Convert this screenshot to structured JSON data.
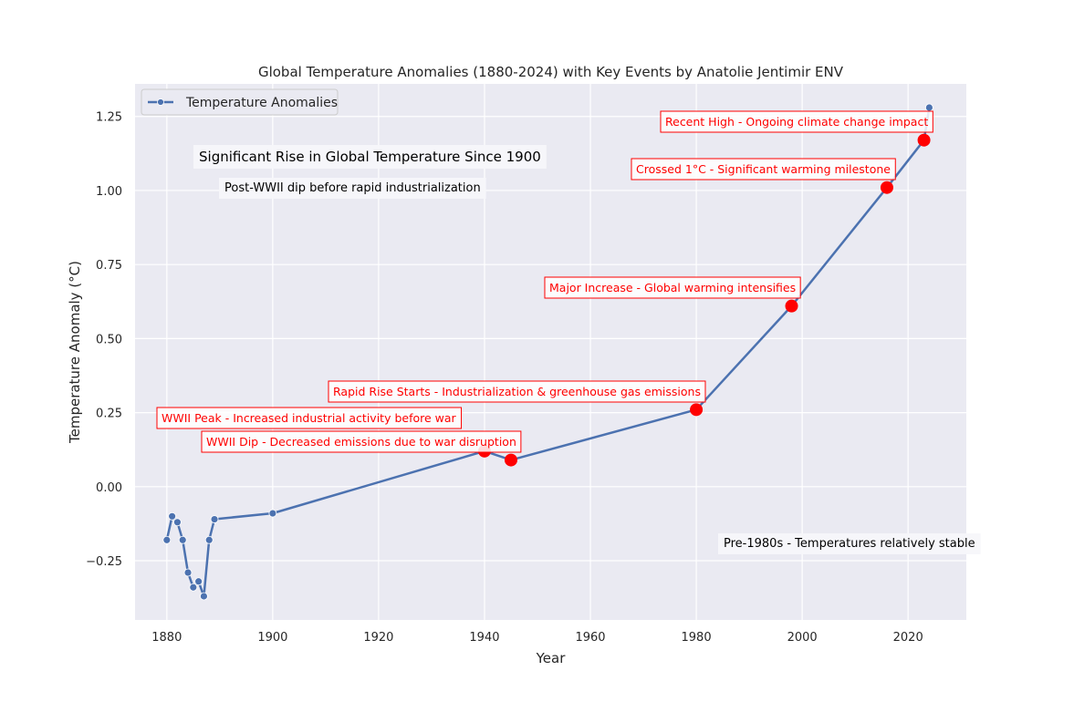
{
  "chart_data": {
    "type": "line",
    "title": "Global Temperature Anomalies (1880-2024) with Key Events by Anatolie Jentimir ENV",
    "xlabel": "Year",
    "ylabel": "Temperature Anomaly (°C)",
    "xlim": [
      1874,
      2031
    ],
    "ylim": [
      -0.45,
      1.36
    ],
    "xticks": [
      1880,
      1900,
      1920,
      1940,
      1960,
      1980,
      2000,
      2020
    ],
    "yticks": [
      -0.25,
      0.0,
      0.25,
      0.5,
      0.75,
      1.0,
      1.25
    ],
    "ytick_labels": [
      "−0.25",
      "0.00",
      "0.25",
      "0.50",
      "0.75",
      "1.00",
      "1.25"
    ],
    "grid": true,
    "legend": {
      "placement": "upper-left",
      "entries": [
        "Temperature Anomalies"
      ]
    },
    "series": [
      {
        "name": "Temperature Anomalies",
        "color": "#4c72b0",
        "x": [
          1880,
          1881,
          1882,
          1883,
          1884,
          1885,
          1886,
          1887,
          1888,
          1889,
          1900,
          1940,
          1945,
          1980,
          1998,
          2016,
          2023,
          2024
        ],
        "y": [
          -0.18,
          -0.1,
          -0.12,
          -0.18,
          -0.29,
          -0.34,
          -0.32,
          -0.37,
          -0.18,
          -0.11,
          -0.09,
          0.12,
          0.09,
          0.26,
          0.61,
          1.01,
          1.17,
          1.28
        ]
      }
    ],
    "events": {
      "color": "#ff0000",
      "points": [
        {
          "x": 1940,
          "y": 0.12
        },
        {
          "x": 1945,
          "y": 0.09
        },
        {
          "x": 1980,
          "y": 0.26
        },
        {
          "x": 1998,
          "y": 0.61
        },
        {
          "x": 2016,
          "y": 1.01
        },
        {
          "x": 2023,
          "y": 1.17
        }
      ]
    },
    "annotations": [
      "WWII Peak - Increased industrial activity before war",
      "WWII Dip - Decreased emissions due to war disruption",
      "Rapid Rise Starts - Industrialization & greenhouse gas emissions",
      "Major Increase - Global warming intensifies",
      "Crossed 1°C - Significant warming milestone",
      "Recent High - Ongoing climate change impact"
    ],
    "notes": [
      "Significant Rise in Global Temperature Since 1900",
      "Post-WWII dip before rapid industrialization",
      "Pre-1980s - Temperatures relatively stable"
    ]
  }
}
